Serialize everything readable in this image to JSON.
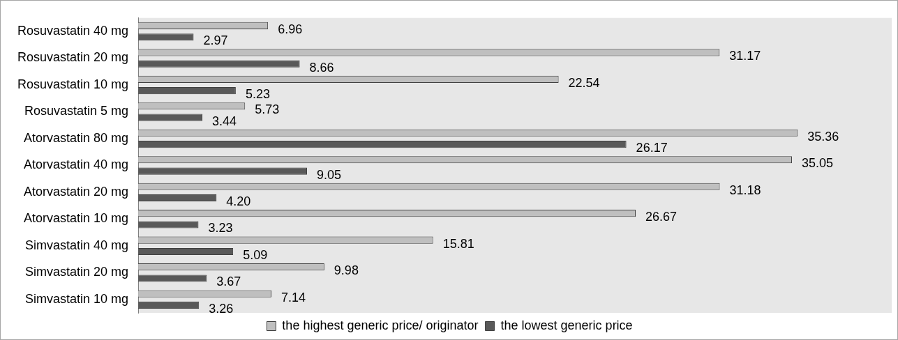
{
  "chart_data": {
    "type": "bar",
    "orientation": "horizontal",
    "categories": [
      "Rosuvastatin 40 mg",
      "Rosuvastatin 20 mg",
      "Rosuvastatin 10 mg",
      "Rosuvastatin 5 mg",
      "Atorvastatin 80 mg",
      "Atorvastatin 40 mg",
      "Atorvastatin 20 mg",
      "Atorvastatin 10 mg",
      "Simvastatin 40 mg",
      "Simvastatin 20 mg",
      "Simvastatin 10 mg"
    ],
    "series": [
      {
        "name": "the highest generic price/ originator",
        "color": "#bfbfbf",
        "values": [
          6.96,
          31.17,
          22.54,
          5.73,
          35.36,
          35.05,
          31.18,
          26.67,
          15.81,
          9.98,
          7.14
        ],
        "value_labels": [
          "6.96",
          "31.17",
          "22.54",
          "5.73",
          "35.36",
          "35.05",
          "31.18",
          "26.67",
          "15.81",
          "9.98",
          "7.14"
        ]
      },
      {
        "name": "the lowest generic price",
        "color": "#595959",
        "values": [
          2.97,
          8.66,
          5.23,
          3.44,
          26.17,
          9.05,
          4.2,
          3.23,
          5.09,
          3.67,
          3.26
        ],
        "value_labels": [
          "2.97",
          "8.66",
          "5.23",
          "3.44",
          "26.17",
          "9.05",
          "4.20",
          "3.23",
          "5.09",
          "3.67",
          "3.26"
        ]
      }
    ],
    "xlim": [
      0,
      40.4
    ],
    "tick_labels": "y",
    "grid": false,
    "legend": "bottom"
  }
}
